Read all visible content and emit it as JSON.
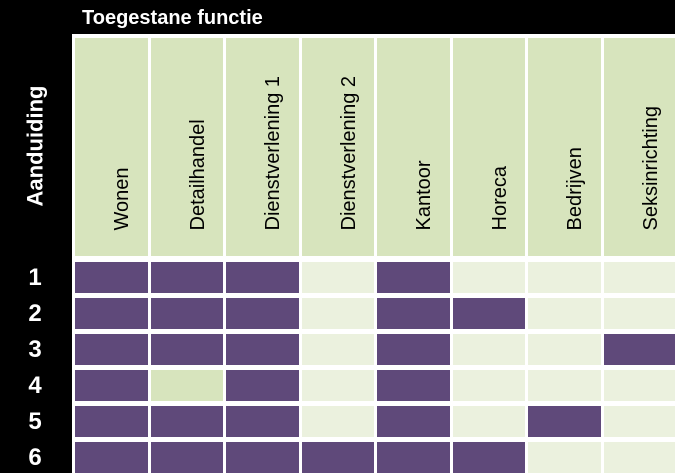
{
  "header": {
    "title": "Toegestane functie",
    "row_label": "Aanduiding"
  },
  "columns": [
    "Wonen",
    "Detailhandel",
    "Dienstverlening 1",
    "Dienstverlening 2",
    "Kantoor",
    "Horeca",
    "Bedrijven",
    "Seksinrichting"
  ],
  "rows": [
    {
      "label": "1",
      "cells": [
        "on",
        "on",
        "on",
        "off",
        "on",
        "off",
        "off",
        "off"
      ]
    },
    {
      "label": "2",
      "cells": [
        "on",
        "on",
        "on",
        "off",
        "on",
        "on",
        "off",
        "off"
      ]
    },
    {
      "label": "3",
      "cells": [
        "on",
        "on",
        "on",
        "off",
        "on",
        "off",
        "off",
        "on"
      ]
    },
    {
      "label": "4",
      "cells": [
        "on",
        "mid",
        "on",
        "off",
        "on",
        "off",
        "off",
        "off"
      ]
    },
    {
      "label": "5",
      "cells": [
        "on",
        "on",
        "on",
        "off",
        "on",
        "off",
        "on",
        "off"
      ]
    },
    {
      "label": "6",
      "cells": [
        "on",
        "on",
        "on",
        "on",
        "on",
        "on",
        "off",
        "off"
      ]
    }
  ],
  "colors": {
    "allowed": "#5f497a",
    "not_allowed": "#ebf1de",
    "header_bg": "#d7e4bd",
    "frame": "#000000"
  }
}
